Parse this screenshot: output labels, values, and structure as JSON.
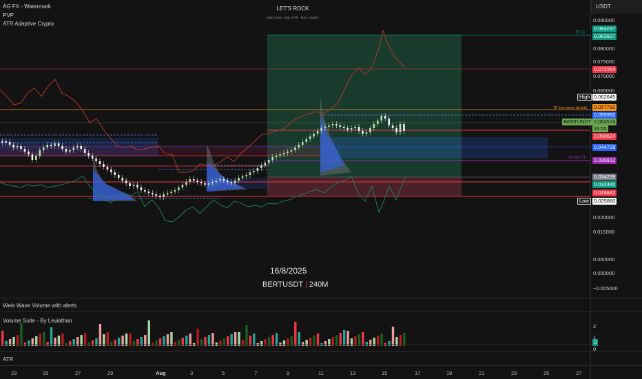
{
  "indicators": {
    "line1": "AG FX - Watermark",
    "line2": "PVP",
    "line3": "ATR Adaptive Crypto"
  },
  "currency": "USDT",
  "watermark": {
    "title": "LET'S ROCK",
    "subtitle": "Max 2 loss - Max 3 RR - Max 4 trades",
    "date": "16/8/2025",
    "symbol_name": "BERTUSDT",
    "symbol_sep": " | ",
    "symbol_tf": "240M"
  },
  "panes": {
    "weis": "Weis Wave Volume with alerts",
    "volume": "Volume Suite - By Leviathan",
    "atr": "ATR"
  },
  "y_axis": [
    "0.090000",
    "0.080000",
    "0.075000",
    "0.070000",
    "0.065000",
    "0.020000",
    "0.015000",
    "0.050000",
    "0.000000",
    "−0.005000"
  ],
  "volume_axis": [
    "2",
    "1",
    "0"
  ],
  "volume_tag": "0",
  "x_axis": [
    "23",
    "25",
    "27",
    "29",
    "Aug",
    "3",
    "5",
    "7",
    "9",
    "11",
    "13",
    "15",
    "17",
    "19",
    "21",
    "23",
    "25",
    "27"
  ],
  "price_tags": [
    {
      "text": "0.084037",
      "color": "#089981"
    },
    {
      "text": "0.083937",
      "color": "#089981"
    },
    {
      "text": "0.072264",
      "color": "#f23645"
    },
    {
      "text": "0.062645",
      "color": "#ffffff"
    },
    {
      "text": "0.057792",
      "color": "#f7931a"
    },
    {
      "text": "0.055992",
      "color": "#2962ff"
    },
    {
      "text": "0.053574",
      "color": "#6aa84f"
    },
    {
      "text": "33:55",
      "color": "#6aa84f"
    },
    {
      "text": "0.050624",
      "color": "#f23645"
    },
    {
      "text": "0.044728",
      "color": "#2962ff"
    },
    {
      "text": "0.039912",
      "color": "#9c27b0"
    },
    {
      "text": "0.034239",
      "color": "#787b86"
    },
    {
      "text": "0.032440",
      "color": "#089981"
    },
    {
      "text": "0.028842",
      "color": "#f23645"
    },
    {
      "text": "0.025860",
      "color": "#ffffff"
    }
  ],
  "labels": {
    "high": "High",
    "low": "Low",
    "symbol_tag": "BERTUSDT",
    "tp_main": "TP (non preso da fisti)",
    "moved_sl": "moved SL",
    "tp_top": "TP (2)"
  },
  "colors": {
    "bull": "#c8e6c9",
    "bear": "#ffffff",
    "green": "#26a69a",
    "red": "#f23645",
    "orange": "#f7931a",
    "blue": "#2962ff",
    "purple": "#9c27b0"
  }
}
